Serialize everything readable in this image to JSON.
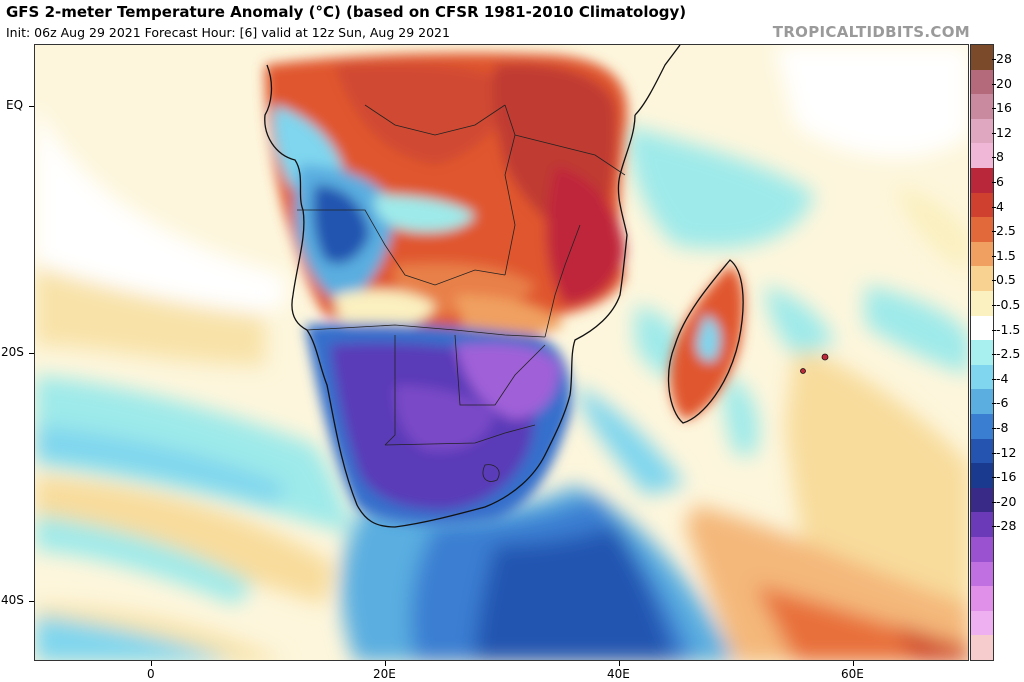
{
  "header": {
    "title": "GFS 2-meter Temperature Anomaly (°C) (based on CFSR 1981-2010 Climatology)",
    "subtitle": "Init: 06z Aug 29 2021   Forecast Hour: [6]   valid at 12z Sun, Aug 29 2021",
    "credit": "TROPICALTIDBITS.COM"
  },
  "axes": {
    "y_labels": [
      "EQ",
      "20S",
      "40S"
    ],
    "x_labels": [
      "0",
      "20E",
      "40E",
      "60E"
    ]
  },
  "colorbar": {
    "labels": [
      "28",
      "20",
      "16",
      "12",
      "8",
      "6",
      "4",
      "2.5",
      "1.5",
      "0.5",
      "-0.5",
      "-1.5",
      "-2.5",
      "-4",
      "-6",
      "-8",
      "-12",
      "-16",
      "-20",
      "-28"
    ],
    "colors": [
      "#7a4a2a",
      "#b46a7a",
      "#c98aa0",
      "#dfa8c0",
      "#f0b8d6",
      "#b8283a",
      "#d0402e",
      "#e26a3a",
      "#f0a060",
      "#f7d290",
      "#fbf0c0",
      "#ffffff",
      "#a8f0f0",
      "#7fd6ee",
      "#5aaee0",
      "#3a7ed2",
      "#2454b0",
      "#1a3a90",
      "#3a2a88",
      "#6a3ab8",
      "#9a52d0",
      "#c070e0",
      "#e090e8",
      "#eeb0f0",
      "#f6cccc"
    ]
  },
  "map": {
    "region": "Southern Africa",
    "colors": {
      "ocean_neutral": "#fdf6dc",
      "warm_light": "#f8dc9c",
      "warm": "#f0a060",
      "hot": "#e0562e",
      "very_hot": "#c02a2a",
      "cool_light": "#9eeaea",
      "cool": "#6fc4ea",
      "cold": "#3470cc",
      "very_cold": "#1a40a0",
      "coldest_land": "#6a40c0",
      "extreme_cold": "#a060d8"
    }
  }
}
